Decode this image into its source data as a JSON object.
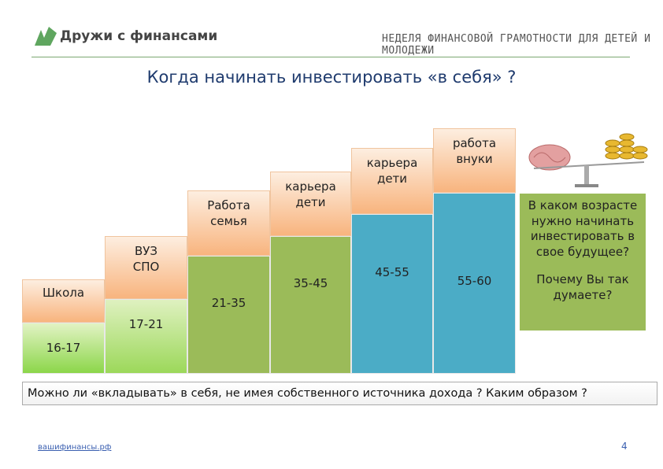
{
  "header": {
    "logo": "Дружи с финансами",
    "banner": "НЕДЕЛЯ ФИНАНСОВОЙ ГРАМОТНОСТИ ДЛЯ ДЕТЕЙ И МОЛОДЕЖИ"
  },
  "title": "Когда начинать инвестировать «в себя» ?",
  "steps": [
    {
      "label_lines": [
        "Школа"
      ],
      "age": "16-17"
    },
    {
      "label_lines": [
        "ВУЗ",
        "СПО"
      ],
      "age": "17-21"
    },
    {
      "label_lines": [
        "Работа",
        "семья"
      ],
      "age": "21-35"
    },
    {
      "label_lines": [
        "карьера",
        "дети"
      ],
      "age": "35-45"
    },
    {
      "label_lines": [
        "карьера",
        "дети"
      ],
      "age": "45-55"
    },
    {
      "label_lines": [
        "работа",
        "внуки"
      ],
      "age": "55-60"
    }
  ],
  "question_box": {
    "paragraphs": [
      "В каком возрасте нужно начинать инвестировать в свое будущее?",
      "Почему Вы так думаете?"
    ]
  },
  "bottom_question": "Можно ли «вкладывать» в себя, не имея собственного источника дохода ? Каким образом ?",
  "footer": {
    "link": "вашифинансы.рф",
    "page": "4"
  }
}
